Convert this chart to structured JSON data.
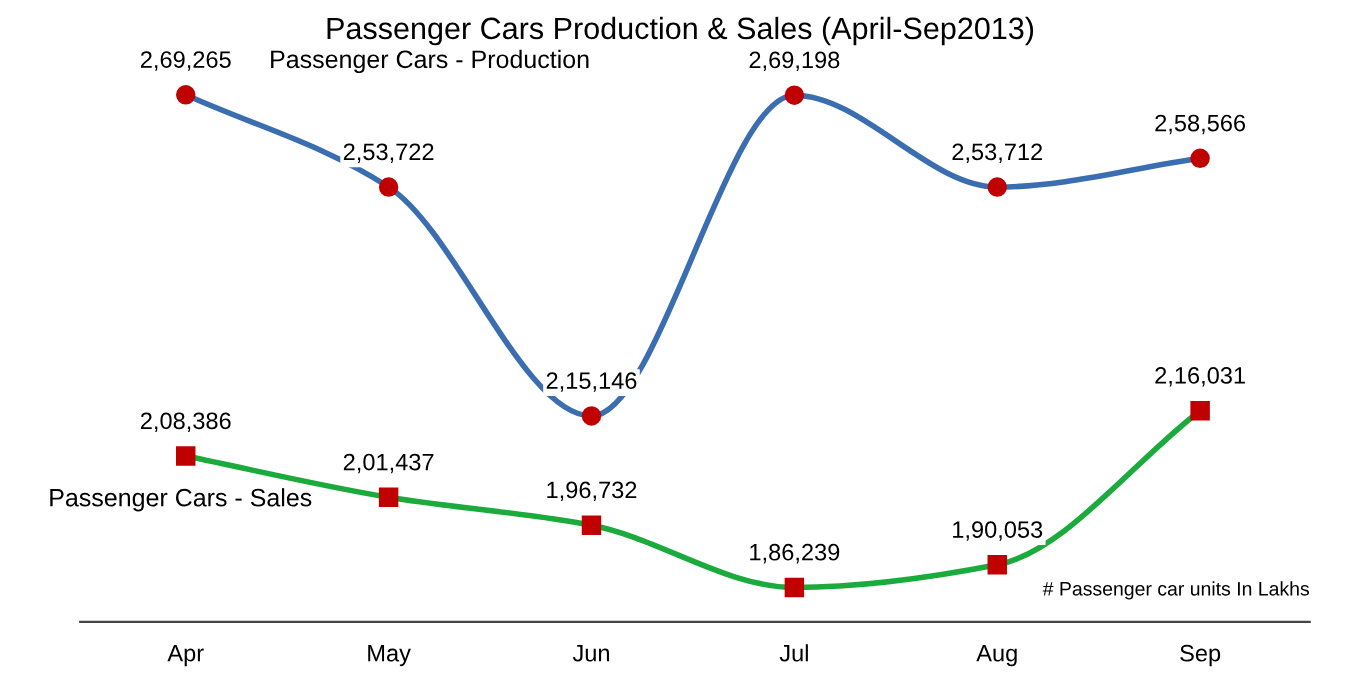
{
  "chart_data": {
    "type": "line",
    "title": "Passenger Cars Production & Sales (April-Sep2013)",
    "categories": [
      "Apr",
      "May",
      "Jun",
      "Jul",
      "Aug",
      "Sep"
    ],
    "series": [
      {
        "name": "Passenger Cars - Production",
        "color": "#3b6eb0",
        "marker": "circle",
        "colors": [
          "#c00000",
          "#c00000",
          "#c00000",
          "#c00000",
          "#c00000",
          "#c00000"
        ],
        "values": [
          269265,
          253722,
          215146,
          269198,
          253712,
          258566
        ],
        "value_labels": [
          "2,69,265",
          "2,53,722",
          "2,15,146",
          "2,69,198",
          "2,53,712",
          "2,58,566"
        ]
      },
      {
        "name": "Passenger Cars - Sales",
        "color": "#1aab3c",
        "marker": "square",
        "colors": [
          "#c00000",
          "#c00000",
          "#c00000",
          "#c00000",
          "#c00000",
          "#c00000"
        ],
        "values": [
          208386,
          201437,
          196732,
          186239,
          190053,
          216031
        ],
        "value_labels": [
          "2,08,386",
          "2,01,437",
          "1,96,732",
          "1,86,239",
          "1,90,053",
          "2,16,031"
        ]
      }
    ],
    "tick_labels": "x",
    "grid": false,
    "legend": false,
    "annotations": [
      "# Passenger car units In Lakhs"
    ]
  }
}
